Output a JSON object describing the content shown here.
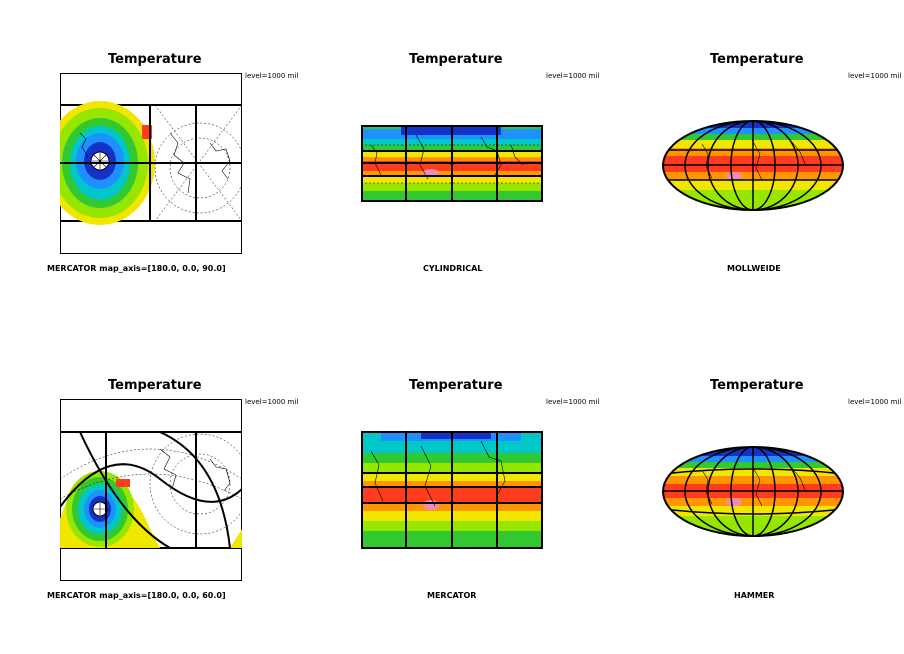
{
  "panels": [
    {
      "title": "Temperature",
      "level": "level=1000 mil",
      "label": "MERCATOR  map_axis=[180.0, 0.0, 90.0]"
    },
    {
      "title": "Temperature",
      "level": "level=1000 mil",
      "label": "CYLINDRICAL"
    },
    {
      "title": "Temperature",
      "level": "level=1000 mil",
      "label": "MOLLWEIDE"
    },
    {
      "title": "Temperature",
      "level": "level=1000 mil",
      "label": "MERCATOR  map_axis=[180.0, 0.0, 60.0]"
    },
    {
      "title": "Temperature",
      "level": "level=1000 mil",
      "label": "MERCATOR"
    },
    {
      "title": "Temperature",
      "level": "level=1000 mil",
      "label": "HAMMER"
    }
  ],
  "colors": {
    "band_cold": "#1432c8",
    "band_cool": "#1e90ff",
    "band_cyan": "#00c8c8",
    "band_green": "#32c832",
    "band_lime": "#96e600",
    "band_yellow": "#f0e600",
    "band_orange": "#ff9600",
    "band_red": "#ff3c1e",
    "band_pink": "#f08cb4"
  }
}
